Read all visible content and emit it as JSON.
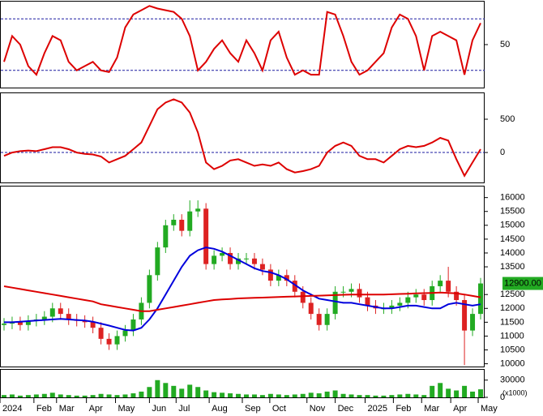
{
  "chart_data": [
    {
      "type": "line",
      "xlim": [
        -0.5,
        59.5
      ],
      "ylim": [
        0,
        100
      ],
      "yticks": [
        50
      ],
      "levels": [
        20,
        80
      ],
      "level_color": "#1a1aa0",
      "series": [
        {
          "color": "#dd0000",
          "values": [
            30,
            60,
            50,
            25,
            15,
            40,
            60,
            55,
            30,
            20,
            25,
            30,
            20,
            18,
            35,
            70,
            85,
            90,
            95,
            92,
            90,
            88,
            80,
            60,
            20,
            30,
            45,
            55,
            40,
            30,
            55,
            40,
            20,
            55,
            65,
            35,
            15,
            20,
            15,
            15,
            88,
            85,
            60,
            30,
            15,
            20,
            30,
            40,
            70,
            85,
            80,
            60,
            20,
            60,
            65,
            60,
            55,
            15,
            55,
            75
          ]
        }
      ]
    },
    {
      "type": "line",
      "xlim": [
        -0.5,
        59.5
      ],
      "ylim": [
        -450,
        890
      ],
      "yticks": [
        0,
        500
      ],
      "levels": [
        0
      ],
      "level_color": "#1a1aa0",
      "series": [
        {
          "color": "#dd0000",
          "values": [
            -50,
            0,
            20,
            30,
            20,
            50,
            80,
            80,
            50,
            0,
            -20,
            -30,
            -60,
            -150,
            -100,
            -50,
            50,
            150,
            400,
            650,
            750,
            800,
            750,
            600,
            300,
            -150,
            -250,
            -200,
            -120,
            -100,
            -150,
            -200,
            -180,
            -200,
            -150,
            -250,
            -300,
            -280,
            -250,
            -200,
            0,
            100,
            150,
            100,
            -50,
            -100,
            -100,
            -150,
            -50,
            50,
            100,
            80,
            100,
            150,
            220,
            180,
            -100,
            -350,
            -150,
            50
          ]
        }
      ]
    },
    {
      "type": "candlestick",
      "xlim": [
        -0.5,
        59.5
      ],
      "ylim": [
        9900,
        16400
      ],
      "yticks": [
        10000,
        10500,
        11000,
        11500,
        12000,
        12500,
        13500,
        14000,
        14500,
        15000,
        15500,
        16000
      ],
      "up_color": "#22aa22",
      "down_color": "#dd2222",
      "open": [
        11400,
        11450,
        11500,
        11400,
        11550,
        11600,
        11700,
        12000,
        11800,
        11600,
        11550,
        11500,
        11300,
        10900,
        10700,
        11000,
        11200,
        11600,
        12200,
        13200,
        14200,
        15000,
        15200,
        14800,
        15500,
        15600,
        13600,
        13900,
        14000,
        13600,
        13800,
        13800,
        13600,
        13400,
        13000,
        13200,
        13000,
        12600,
        12200,
        11800,
        11400,
        11800,
        12600,
        12600,
        12700,
        12400,
        12100,
        12000,
        12000,
        12100,
        12200,
        12400,
        12500,
        12300,
        12800,
        13000,
        12600,
        12300,
        11200,
        11800
      ],
      "high": [
        11650,
        11700,
        11700,
        11750,
        11800,
        11900,
        12200,
        12200,
        12000,
        11800,
        11750,
        11700,
        11500,
        11100,
        11200,
        11400,
        11800,
        12400,
        13400,
        14400,
        15200,
        15400,
        15400,
        15900,
        15900,
        15800,
        14100,
        14200,
        14200,
        14000,
        14000,
        14000,
        13800,
        13600,
        13400,
        13400,
        13200,
        12800,
        12400,
        12000,
        12000,
        12800,
        12800,
        12900,
        12900,
        12600,
        12300,
        12200,
        12300,
        12400,
        12600,
        12700,
        12700,
        13000,
        13200,
        13500,
        12800,
        12500,
        12000,
        13100
      ],
      "low": [
        11200,
        11250,
        11200,
        11200,
        11350,
        11400,
        11500,
        11600,
        11400,
        11350,
        11300,
        11100,
        10700,
        10500,
        10500,
        10800,
        11000,
        11400,
        12000,
        13000,
        14000,
        14800,
        14600,
        14600,
        15300,
        13400,
        13400,
        13700,
        13400,
        13400,
        13600,
        13400,
        13200,
        12800,
        12800,
        12800,
        12400,
        12000,
        11600,
        11200,
        11200,
        11600,
        12400,
        12400,
        12200,
        11900,
        11800,
        11800,
        11800,
        11900,
        12000,
        12200,
        12100,
        12100,
        12600,
        12400,
        12100,
        9950,
        11000,
        11600
      ],
      "close": [
        11450,
        11500,
        11400,
        11550,
        11600,
        11700,
        12000,
        11800,
        11600,
        11550,
        11500,
        11300,
        10900,
        10700,
        11000,
        11200,
        11600,
        12200,
        13200,
        14200,
        15000,
        15200,
        14800,
        15500,
        15600,
        13600,
        13900,
        14000,
        13600,
        13800,
        13800,
        13600,
        13400,
        13000,
        13200,
        13000,
        12600,
        12200,
        11800,
        11400,
        11800,
        12600,
        12600,
        12700,
        12400,
        12100,
        12000,
        12000,
        12100,
        12200,
        12400,
        12500,
        12300,
        12800,
        13000,
        12600,
        12300,
        11200,
        11800,
        12900
      ],
      "last_label": "12900.00",
      "last_color": "#22aa22",
      "series": [
        {
          "color": "#0000dd",
          "values": [
            11500,
            11500,
            11520,
            11540,
            11560,
            11580,
            11600,
            11620,
            11600,
            11580,
            11560,
            11520,
            11450,
            11380,
            11300,
            11220,
            11200,
            11300,
            11600,
            12000,
            12500,
            13000,
            13500,
            13900,
            14100,
            14200,
            14150,
            14050,
            13900,
            13750,
            13600,
            13450,
            13350,
            13300,
            13200,
            13050,
            12850,
            12650,
            12500,
            12350,
            12300,
            12250,
            12200,
            12200,
            12150,
            12100,
            12050,
            12000,
            12000,
            12050,
            12100,
            12100,
            12050,
            12000,
            12000,
            12150,
            12200,
            12150,
            12100,
            12150
          ]
        },
        {
          "color": "#dd0000",
          "values": [
            12800,
            12750,
            12700,
            12650,
            12600,
            12550,
            12500,
            12450,
            12400,
            12350,
            12300,
            12250,
            12150,
            12100,
            12050,
            12000,
            11950,
            11900,
            11900,
            11950,
            12000,
            12050,
            12100,
            12150,
            12200,
            12250,
            12300,
            12320,
            12340,
            12360,
            12370,
            12380,
            12390,
            12400,
            12410,
            12420,
            12430,
            12440,
            12450,
            12460,
            12470,
            12480,
            12490,
            12500,
            12500,
            12500,
            12500,
            12500,
            12510,
            12520,
            12530,
            12540,
            12550,
            12560,
            12570,
            12560,
            12540,
            12500,
            12450,
            12400
          ]
        }
      ]
    },
    {
      "type": "bar",
      "xlim": [
        -0.5,
        59.5
      ],
      "ylim": [
        0,
        48000
      ],
      "yticks": [
        0,
        30000
      ],
      "units": "(x1000)",
      "color": "#22aa22",
      "values": [
        4000,
        5000,
        3000,
        4000,
        5000,
        6000,
        8000,
        5000,
        4000,
        3000,
        3000,
        4000,
        6000,
        5000,
        4000,
        5000,
        7000,
        10000,
        18000,
        30000,
        25000,
        20000,
        15000,
        22000,
        18000,
        12000,
        9000,
        8000,
        7000,
        6000,
        5000,
        5000,
        4000,
        6000,
        5000,
        4000,
        5000,
        6000,
        8000,
        7000,
        10000,
        12000,
        6000,
        5000,
        4000,
        4000,
        3000,
        3000,
        4000,
        5000,
        6000,
        5000,
        4000,
        20000,
        25000,
        15000,
        12000,
        20000,
        10000,
        14000
      ],
      "xticks": [
        {
          "value": -0.5,
          "label": "2024"
        },
        {
          "value": 3.7,
          "label": "Feb"
        },
        {
          "value": 6.5,
          "label": "Mar"
        },
        {
          "value": 10.2,
          "label": "Apr"
        },
        {
          "value": 13.8,
          "label": "May"
        },
        {
          "value": 18,
          "label": "Jun"
        },
        {
          "value": 21.3,
          "label": "Jul"
        },
        {
          "value": 25.4,
          "label": "Aug"
        },
        {
          "value": 29.5,
          "label": "Sep"
        },
        {
          "value": 32.9,
          "label": "Oct"
        },
        {
          "value": 37.5,
          "label": "Nov"
        },
        {
          "value": 41,
          "label": "Dec"
        },
        {
          "value": 44.7,
          "label": "2025"
        },
        {
          "value": 48.2,
          "label": "Feb"
        },
        {
          "value": 51.7,
          "label": "Mar"
        },
        {
          "value": 55.3,
          "label": "Apr"
        },
        {
          "value": 58.7,
          "label": "May"
        }
      ]
    }
  ]
}
